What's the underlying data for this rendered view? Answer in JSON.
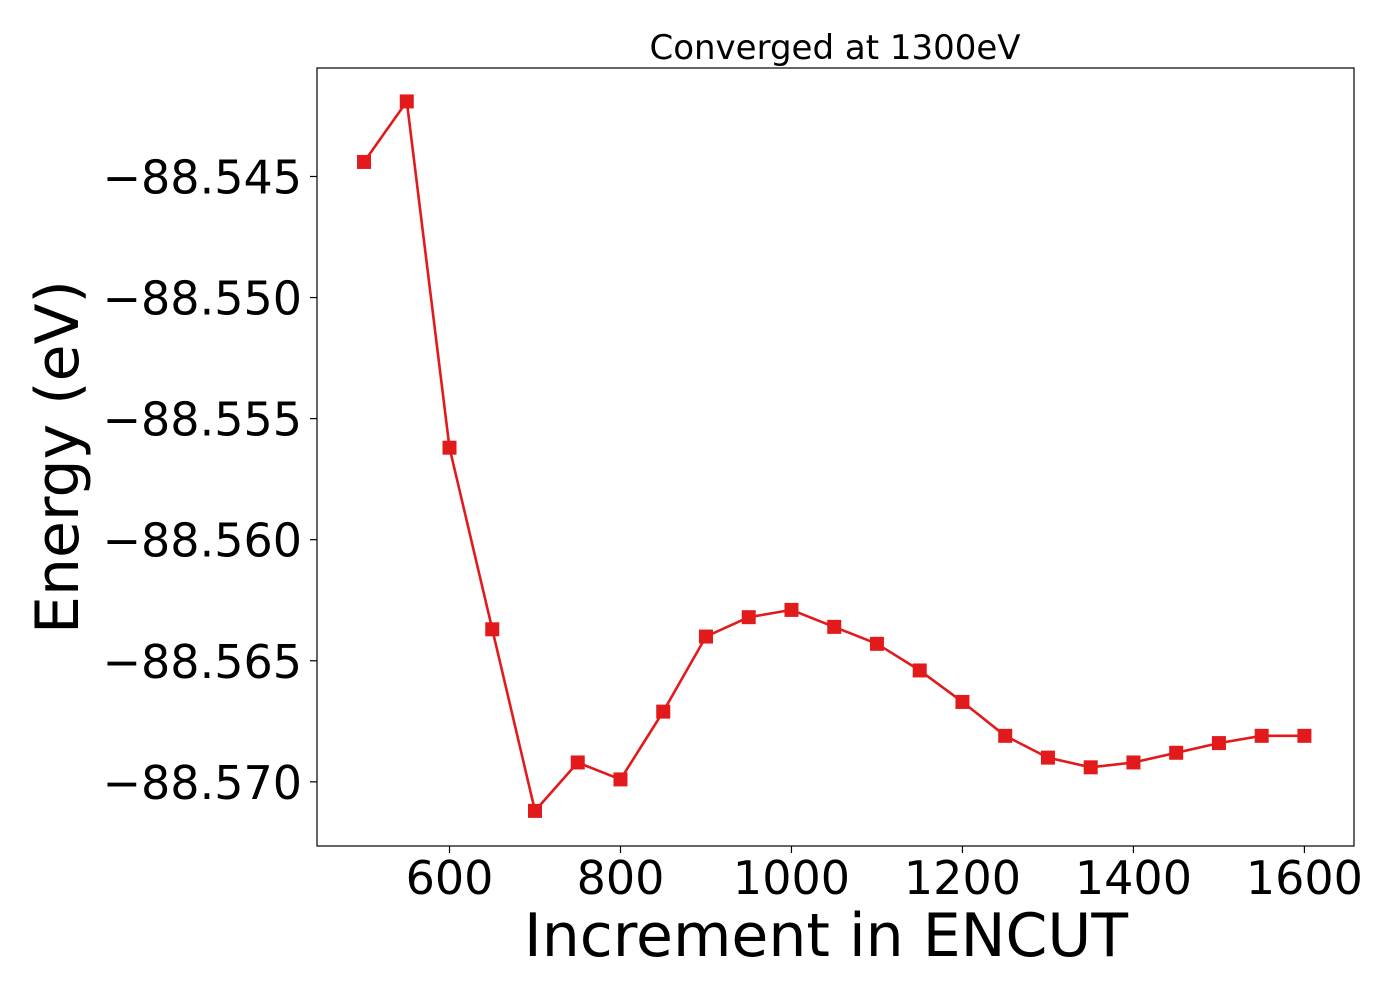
{
  "chart_data": {
    "type": "line",
    "title": "Converged at 1300eV",
    "xlabel": "Increment in ENCUT",
    "ylabel": "Energy (eV)",
    "x": [
      500,
      550,
      600,
      650,
      700,
      750,
      800,
      850,
      900,
      950,
      1000,
      1050,
      1100,
      1150,
      1200,
      1250,
      1300,
      1350,
      1400,
      1450,
      1500,
      1550,
      1600
    ],
    "series": [
      {
        "name": "",
        "color": "#e31a1c",
        "marker": "square",
        "values": [
          -88.5444,
          -88.5419,
          -88.5562,
          -88.5637,
          -88.5712,
          -88.5692,
          -88.5699,
          -88.5671,
          -88.564,
          -88.5632,
          -88.5629,
          -88.5636,
          -88.5643,
          -88.5654,
          -88.5667,
          -88.5681,
          -88.569,
          -88.5694,
          -88.5692,
          -88.5688,
          -88.5684,
          -88.5681,
          -88.5681
        ]
      }
    ],
    "xlim": [
      445,
      1658
    ],
    "ylim": [
      -88.57265,
      -88.54052
    ],
    "xticks": [
      600,
      800,
      1000,
      1200,
      1400,
      1600
    ],
    "xtick_labels": [
      "600",
      "800",
      "1000",
      "1200",
      "1400",
      "1600"
    ],
    "yticks": [
      -88.545,
      -88.55,
      -88.555,
      -88.56,
      -88.565,
      -88.57
    ],
    "ytick_labels": [
      "−88.545",
      "−88.550",
      "−88.555",
      "−88.560",
      "−88.565",
      "−88.570"
    ],
    "grid": false,
    "legend": "none"
  }
}
